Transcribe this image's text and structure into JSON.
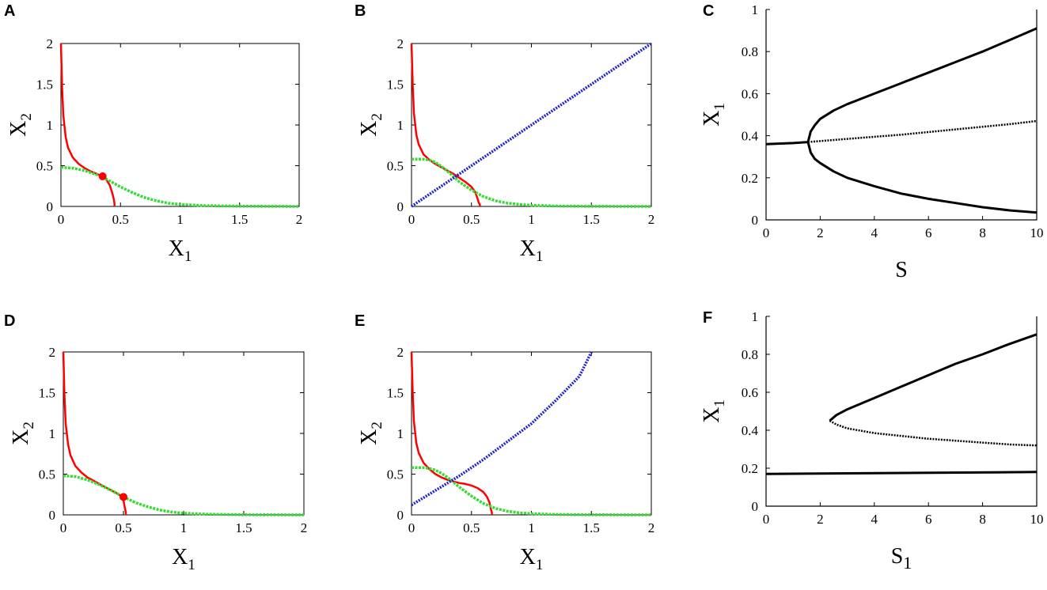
{
  "chart_data": [
    {
      "panel": "A",
      "type": "line",
      "xlabel": "X",
      "xlabel_sub": "1",
      "ylabel": "X",
      "ylabel_sub": "2",
      "xlim": [
        0,
        2
      ],
      "ylim": [
        0,
        2
      ],
      "xticks": [
        "0",
        "0.5",
        "1",
        "1.5",
        "2"
      ],
      "yticks": [
        "0",
        "0.5",
        "1",
        "1.5",
        "2"
      ],
      "series": [
        {
          "color": "#ff0000",
          "style": "solid",
          "x": [
            0.0,
            0.01,
            0.02,
            0.04,
            0.06,
            0.1,
            0.15,
            0.2,
            0.25,
            0.3,
            0.35,
            0.38,
            0.41,
            0.43,
            0.445,
            0.45,
            0.45
          ],
          "y": [
            2.0,
            1.45,
            1.12,
            0.85,
            0.72,
            0.6,
            0.52,
            0.47,
            0.43,
            0.4,
            0.37,
            0.33,
            0.26,
            0.17,
            0.08,
            0.03,
            0.0
          ]
        },
        {
          "color": "#33dd33",
          "style": "dashed",
          "x": [
            0.0,
            0.1,
            0.2,
            0.3,
            0.35,
            0.4,
            0.5,
            0.6,
            0.7,
            0.8,
            0.9,
            1.0,
            1.2,
            1.5,
            2.0
          ],
          "y": [
            0.48,
            0.47,
            0.44,
            0.39,
            0.36,
            0.32,
            0.24,
            0.17,
            0.11,
            0.07,
            0.04,
            0.025,
            0.01,
            0.003,
            0.0
          ]
        }
      ],
      "points": [
        {
          "x": 0.35,
          "y": 0.37,
          "color": "#ff0000"
        }
      ]
    },
    {
      "panel": "B",
      "type": "line",
      "xlabel": "X",
      "xlabel_sub": "1",
      "ylabel": "X",
      "ylabel_sub": "2",
      "xlim": [
        0,
        2
      ],
      "ylim": [
        0,
        2
      ],
      "xticks": [
        "0",
        "0.5",
        "1",
        "1.5",
        "2"
      ],
      "yticks": [
        "0",
        "0.5",
        "1",
        "1.5",
        "2"
      ],
      "series": [
        {
          "color": "#ff0000",
          "style": "solid",
          "x": [
            0.0,
            0.01,
            0.02,
            0.04,
            0.06,
            0.1,
            0.15,
            0.2,
            0.25,
            0.3,
            0.35,
            0.4,
            0.45,
            0.5,
            0.53,
            0.55,
            0.56,
            0.57,
            0.57
          ],
          "y": [
            2.0,
            1.5,
            1.15,
            0.88,
            0.76,
            0.64,
            0.57,
            0.52,
            0.48,
            0.44,
            0.4,
            0.35,
            0.3,
            0.24,
            0.18,
            0.1,
            0.05,
            0.02,
            0.0
          ]
        },
        {
          "color": "#33dd33",
          "style": "dashed",
          "x": [
            0.0,
            0.1,
            0.15,
            0.2,
            0.25,
            0.3,
            0.35,
            0.4,
            0.5,
            0.6,
            0.7,
            0.8,
            0.9,
            1.0,
            1.2,
            1.5,
            2.0
          ],
          "y": [
            0.58,
            0.58,
            0.57,
            0.54,
            0.49,
            0.43,
            0.37,
            0.3,
            0.2,
            0.12,
            0.07,
            0.04,
            0.025,
            0.015,
            0.005,
            0.001,
            0.0
          ]
        },
        {
          "color": "#2222cc",
          "style": "dotted",
          "x": [
            0.0,
            2.0
          ],
          "y": [
            0.0,
            2.0
          ]
        }
      ]
    },
    {
      "panel": "C",
      "type": "line",
      "xlabel": "S",
      "xlabel_sub": "",
      "ylabel": "X",
      "ylabel_sub": "1",
      "xlim": [
        0,
        10
      ],
      "ylim": [
        0,
        1
      ],
      "xticks": [
        "0",
        "2",
        "4",
        "6",
        "8",
        "10"
      ],
      "yticks": [
        "0",
        "0.2",
        "0.4",
        "0.6",
        "0.8",
        "1"
      ],
      "series": [
        {
          "color": "#000000",
          "style": "solid",
          "x": [
            0.0,
            1.0,
            1.55
          ],
          "y": [
            0.36,
            0.365,
            0.37
          ]
        },
        {
          "color": "#000000",
          "style": "solid",
          "x": [
            1.55,
            1.65,
            1.8,
            2.0,
            2.5,
            3.0,
            4.0,
            5.0,
            6.0,
            7.0,
            8.0,
            9.0,
            10.0
          ],
          "y": [
            0.37,
            0.42,
            0.45,
            0.48,
            0.52,
            0.55,
            0.6,
            0.65,
            0.7,
            0.75,
            0.8,
            0.855,
            0.91
          ]
        },
        {
          "color": "#000000",
          "style": "solid",
          "x": [
            1.55,
            1.65,
            1.8,
            2.0,
            2.5,
            3.0,
            4.0,
            5.0,
            6.0,
            7.0,
            8.0,
            9.0,
            10.0
          ],
          "y": [
            0.37,
            0.32,
            0.29,
            0.27,
            0.23,
            0.2,
            0.16,
            0.125,
            0.1,
            0.08,
            0.06,
            0.045,
            0.035
          ]
        },
        {
          "color": "#000000",
          "style": "dashed",
          "x": [
            1.55,
            3.0,
            5.0,
            7.0,
            9.0,
            10.0
          ],
          "y": [
            0.37,
            0.385,
            0.405,
            0.43,
            0.455,
            0.47
          ]
        }
      ]
    },
    {
      "panel": "D",
      "type": "line",
      "xlabel": "X",
      "xlabel_sub": "1",
      "ylabel": "X",
      "ylabel_sub": "2",
      "xlim": [
        0,
        2
      ],
      "ylim": [
        0,
        2
      ],
      "xticks": [
        "0",
        "0.5",
        "1",
        "1.5",
        "2"
      ],
      "yticks": [
        "0",
        "0.5",
        "1",
        "1.5",
        "2"
      ],
      "series": [
        {
          "color": "#ff0000",
          "style": "solid",
          "x": [
            0.0,
            0.01,
            0.02,
            0.04,
            0.06,
            0.1,
            0.15,
            0.2,
            0.25,
            0.3,
            0.35,
            0.4,
            0.45,
            0.48,
            0.5,
            0.51,
            0.52,
            0.52
          ],
          "y": [
            2.0,
            1.45,
            1.12,
            0.86,
            0.73,
            0.6,
            0.52,
            0.46,
            0.42,
            0.38,
            0.34,
            0.3,
            0.26,
            0.23,
            0.18,
            0.1,
            0.03,
            0.0
          ]
        },
        {
          "color": "#33dd33",
          "style": "dashed",
          "x": [
            0.0,
            0.1,
            0.2,
            0.3,
            0.4,
            0.5,
            0.6,
            0.7,
            0.8,
            0.9,
            1.0,
            1.2,
            1.5,
            2.0
          ],
          "y": [
            0.48,
            0.47,
            0.43,
            0.37,
            0.3,
            0.22,
            0.15,
            0.1,
            0.06,
            0.035,
            0.02,
            0.008,
            0.002,
            0.0
          ]
        }
      ],
      "points": [
        {
          "x": 0.5,
          "y": 0.22,
          "color": "#ff0000"
        }
      ]
    },
    {
      "panel": "E",
      "type": "line",
      "xlabel": "X",
      "xlabel_sub": "1",
      "ylabel": "X",
      "ylabel_sub": "2",
      "xlim": [
        0,
        2
      ],
      "ylim": [
        0,
        2
      ],
      "xticks": [
        "0",
        "0.5",
        "1",
        "1.5",
        "2"
      ],
      "yticks": [
        "0",
        "0.5",
        "1",
        "1.5",
        "2"
      ],
      "series": [
        {
          "color": "#ff0000",
          "style": "solid",
          "x": [
            0.0,
            0.01,
            0.02,
            0.04,
            0.06,
            0.1,
            0.15,
            0.2,
            0.25,
            0.3,
            0.35,
            0.4,
            0.45,
            0.5,
            0.55,
            0.6,
            0.63,
            0.65,
            0.66,
            0.67,
            0.67
          ],
          "y": [
            2.0,
            1.5,
            1.15,
            0.88,
            0.76,
            0.64,
            0.56,
            0.5,
            0.46,
            0.43,
            0.41,
            0.39,
            0.38,
            0.36,
            0.33,
            0.28,
            0.22,
            0.15,
            0.08,
            0.03,
            0.0
          ]
        },
        {
          "color": "#33dd33",
          "style": "dashed",
          "x": [
            0.0,
            0.1,
            0.15,
            0.2,
            0.25,
            0.3,
            0.35,
            0.4,
            0.5,
            0.6,
            0.7,
            0.8,
            0.9,
            1.0,
            1.2,
            1.5,
            2.0
          ],
          "y": [
            0.58,
            0.58,
            0.57,
            0.55,
            0.51,
            0.46,
            0.4,
            0.34,
            0.23,
            0.14,
            0.08,
            0.045,
            0.025,
            0.015,
            0.005,
            0.001,
            0.0
          ]
        },
        {
          "color": "#2222cc",
          "style": "dotted",
          "x": [
            0.0,
            0.2,
            0.4,
            0.6,
            0.8,
            1.0,
            1.2,
            1.4,
            1.5
          ],
          "y": [
            0.12,
            0.3,
            0.48,
            0.68,
            0.9,
            1.12,
            1.4,
            1.7,
            2.0
          ]
        }
      ]
    },
    {
      "panel": "F",
      "type": "line",
      "xlabel": "S",
      "xlabel_sub": "1",
      "ylabel": "X",
      "ylabel_sub": "1",
      "xlim": [
        0,
        10
      ],
      "ylim": [
        0,
        1
      ],
      "xticks": [
        "0",
        "2",
        "4",
        "6",
        "8",
        "10"
      ],
      "yticks": [
        "0",
        "0.2",
        "0.4",
        "0.6",
        "0.8",
        "1"
      ],
      "series": [
        {
          "color": "#000000",
          "style": "solid",
          "x": [
            0.0,
            10.0
          ],
          "y": [
            0.17,
            0.18
          ]
        },
        {
          "color": "#000000",
          "style": "solid",
          "x": [
            2.35,
            2.6,
            3.0,
            4.0,
            5.0,
            6.0,
            7.0,
            8.0,
            9.0,
            10.0
          ],
          "y": [
            0.45,
            0.48,
            0.51,
            0.57,
            0.63,
            0.69,
            0.75,
            0.8,
            0.855,
            0.905
          ]
        },
        {
          "color": "#000000",
          "style": "dashed",
          "x": [
            2.35,
            2.6,
            3.0,
            4.0,
            5.0,
            6.0,
            7.0,
            8.0,
            9.0,
            10.0
          ],
          "y": [
            0.45,
            0.43,
            0.41,
            0.385,
            0.37,
            0.355,
            0.345,
            0.335,
            0.325,
            0.32
          ]
        }
      ]
    }
  ]
}
